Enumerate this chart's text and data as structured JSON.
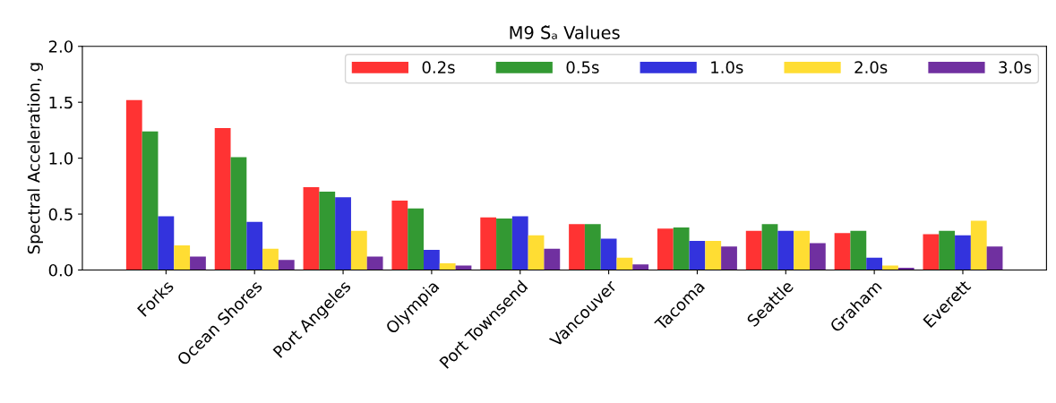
{
  "chart_data": {
    "type": "bar",
    "title": "M9 S̃ₐ Values",
    "ylabel": "Spectral Acceleration, g",
    "categories": [
      "Forks",
      "Ocean Shores",
      "Port Angeles",
      "Olympia",
      "Port Townsend",
      "Vancouver",
      "Tacoma",
      "Seattle",
      "Graham",
      "Everett"
    ],
    "series": [
      {
        "name": "0.2s",
        "color": "#ff3333",
        "values": [
          1.52,
          1.27,
          0.74,
          0.62,
          0.47,
          0.41,
          0.37,
          0.35,
          0.33,
          0.32
        ]
      },
      {
        "name": "0.5s",
        "color": "#339933",
        "values": [
          1.24,
          1.01,
          0.7,
          0.55,
          0.46,
          0.41,
          0.38,
          0.41,
          0.35,
          0.35
        ]
      },
      {
        "name": "1.0s",
        "color": "#3333dd",
        "values": [
          0.48,
          0.43,
          0.65,
          0.18,
          0.48,
          0.28,
          0.26,
          0.35,
          0.11,
          0.31
        ]
      },
      {
        "name": "2.0s",
        "color": "#ffdd33",
        "values": [
          0.22,
          0.19,
          0.35,
          0.06,
          0.31,
          0.11,
          0.26,
          0.35,
          0.04,
          0.44
        ]
      },
      {
        "name": "3.0s",
        "color": "#7030a0",
        "values": [
          0.12,
          0.09,
          0.12,
          0.04,
          0.19,
          0.05,
          0.21,
          0.24,
          0.02,
          0.21
        ]
      }
    ],
    "ylim": [
      0,
      2.0
    ],
    "yticks": [
      {
        "value": 0,
        "label": "0.0"
      },
      0.5,
      {
        "value": 1,
        "label": "1.0"
      },
      1.5,
      {
        "value": 2,
        "label": "2.0"
      }
    ],
    "legend": "top right",
    "grid": false
  }
}
